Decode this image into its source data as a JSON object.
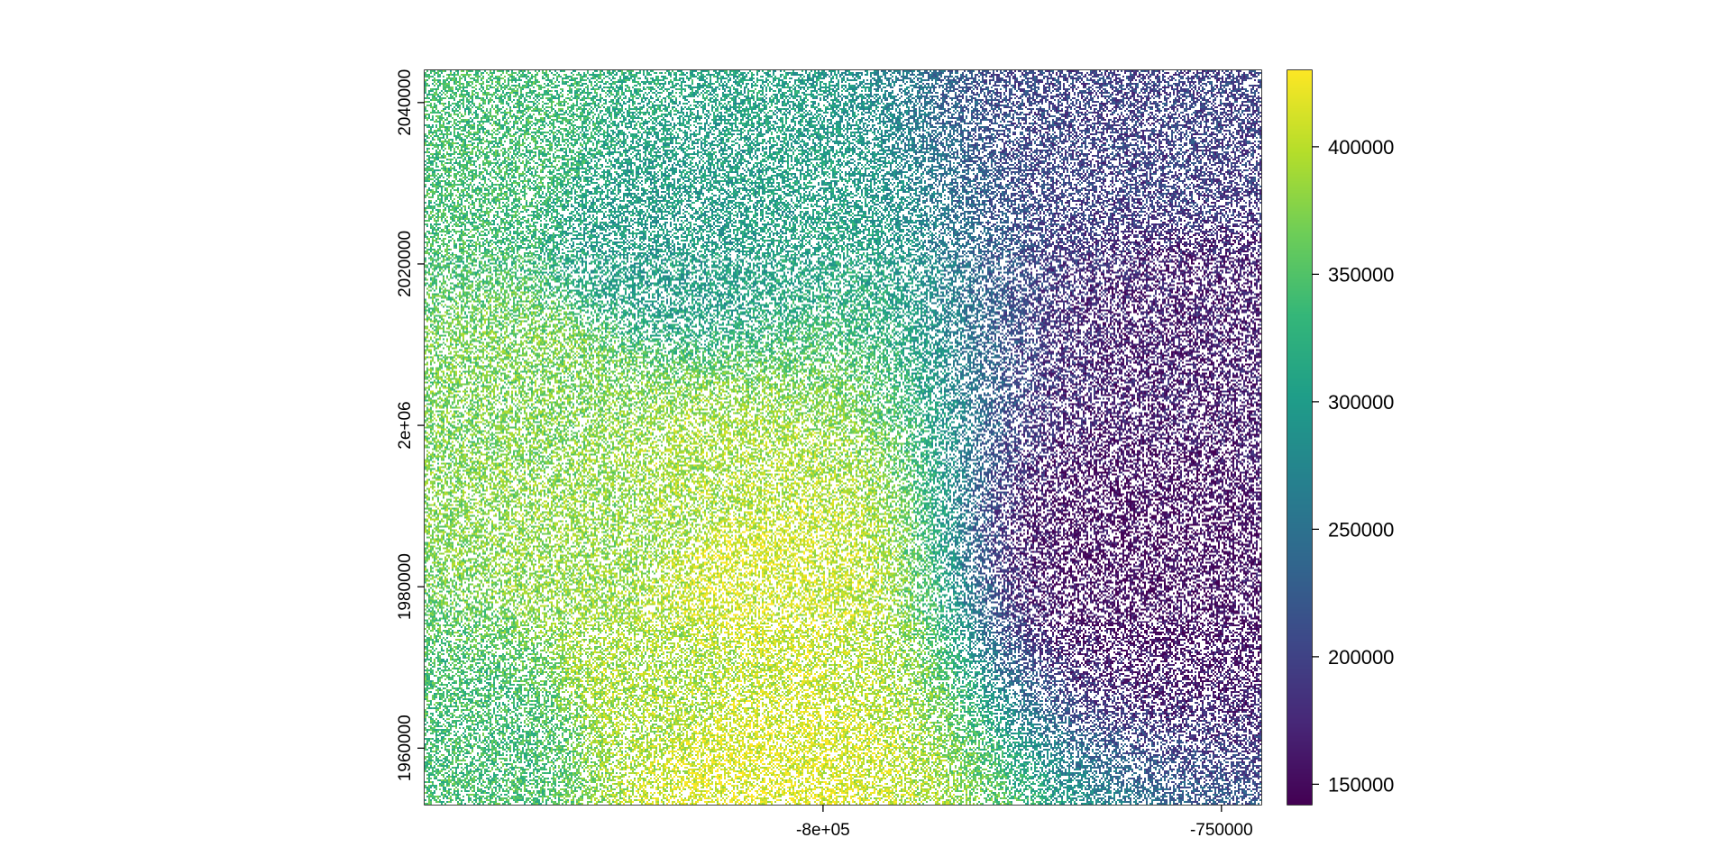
{
  "chart_data": {
    "type": "heatmap",
    "title": "",
    "xlabel": "",
    "ylabel": "",
    "xlim": [
      -850000,
      -745000
    ],
    "ylim": [
      1953000,
      2044000
    ],
    "x_ticks": [
      {
        "value": -800000,
        "label": "-8e+05"
      },
      {
        "value": -750000,
        "label": "-750000"
      }
    ],
    "y_ticks": [
      {
        "value": 1960000,
        "label": "1960000"
      },
      {
        "value": 1980000,
        "label": "1980000"
      },
      {
        "value": 2000000,
        "label": "2e+06"
      },
      {
        "value": 2020000,
        "label": "2020000"
      },
      {
        "value": 2040000,
        "label": "2040000"
      }
    ],
    "colorbar": {
      "palette": "viridis",
      "range": [
        142000,
        430000
      ],
      "ticks": [
        {
          "value": 150000,
          "label": "150000"
        },
        {
          "value": 200000,
          "label": "200000"
        },
        {
          "value": 250000,
          "label": "250000"
        },
        {
          "value": 300000,
          "label": "300000"
        },
        {
          "value": 350000,
          "label": "350000"
        },
        {
          "value": 400000,
          "label": "400000"
        }
      ],
      "colors": [
        "#440154",
        "#482878",
        "#3e4989",
        "#31688e",
        "#26828e",
        "#1f9e89",
        "#35b779",
        "#6ece58",
        "#b5de2b",
        "#fde725"
      ]
    },
    "missing_value_color": "#ffffff",
    "missing_fraction": 0.45,
    "surface_description": "Noisy raster; highest values (~400000+) along a ridge running from upper-left to lower-middle, values decrease toward the east (~150000 at right edge).",
    "surface_anchors": [
      {
        "x": -846000,
        "y": 2032000,
        "value": 340000
      },
      {
        "x": -836000,
        "y": 2004000,
        "value": 370000
      },
      {
        "x": -826000,
        "y": 1988000,
        "value": 380000
      },
      {
        "x": -810000,
        "y": 1982000,
        "value": 410000
      },
      {
        "x": -816000,
        "y": 1992000,
        "value": 390000
      },
      {
        "x": -822000,
        "y": 1968000,
        "value": 390000
      },
      {
        "x": -810000,
        "y": 1956000,
        "value": 415000
      },
      {
        "x": -842000,
        "y": 1962000,
        "value": 340000
      },
      {
        "x": -820000,
        "y": 2022000,
        "value": 300000
      },
      {
        "x": -760000,
        "y": 1985000,
        "value": 150000
      },
      {
        "x": -750000,
        "y": 2010000,
        "value": 165000
      },
      {
        "x": -755000,
        "y": 2040000,
        "value": 200000
      }
    ]
  }
}
